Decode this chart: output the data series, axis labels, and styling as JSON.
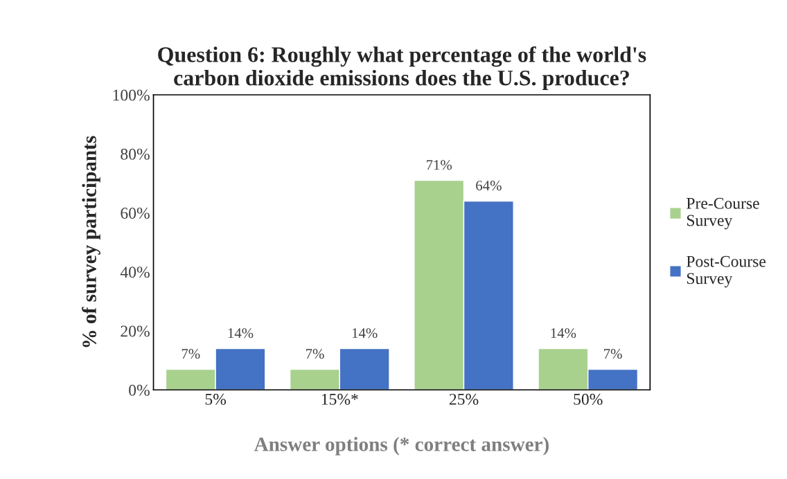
{
  "chart_data": {
    "type": "bar",
    "title": "Question 6: Roughly what percentage of the world's\ncarbon dioxide emissions does the U.S. produce?",
    "xlabel": "Answer options (* correct answer)",
    "ylabel": "% of survey participants",
    "categories": [
      "5%",
      "15%*",
      "25%",
      "50%"
    ],
    "series": [
      {
        "name": "Pre-Course\nSurvey",
        "color": "#a9d18e",
        "values": [
          7,
          7,
          71,
          14
        ],
        "value_labels": [
          "7%",
          "7%",
          "71%",
          "14%"
        ]
      },
      {
        "name": "Post-Course\nSurvey",
        "color": "#4472c4",
        "values": [
          14,
          14,
          64,
          7
        ],
        "value_labels": [
          "14%",
          "14%",
          "64%",
          "7%"
        ]
      }
    ],
    "ylim": [
      0,
      100
    ],
    "yticks": [
      {
        "value": 0,
        "label": "0%"
      },
      {
        "value": 20,
        "label": "20%"
      },
      {
        "value": 40,
        "label": "40%"
      },
      {
        "value": 60,
        "label": "60%"
      },
      {
        "value": 80,
        "label": "80%"
      },
      {
        "value": 100,
        "label": "100%"
      }
    ],
    "grid": false,
    "legend": "right"
  }
}
